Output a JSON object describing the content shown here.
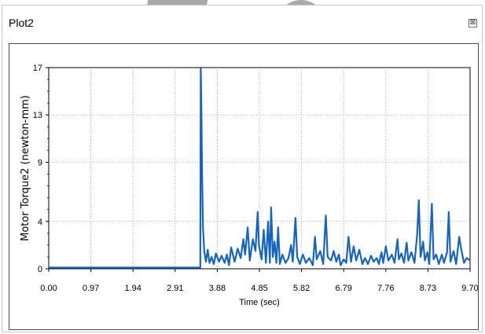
{
  "window": {
    "title": "Plot2",
    "close_glyph": "⊠"
  },
  "colors": {
    "series": "#1565c0",
    "grid": "#9a9a9a",
    "frame": "#4a4a4a",
    "axis": "#000000"
  },
  "chart_data": {
    "type": "line",
    "title": "",
    "xlabel": "Time (sec)",
    "ylabel": "Motor Torque2 (newton-mm)",
    "xlim": [
      0,
      9.7
    ],
    "ylim": [
      0,
      17
    ],
    "xticks": [
      "0.00",
      "0.97",
      "1.94",
      "2.91",
      "3.88",
      "4.85",
      "5.82",
      "6.79",
      "7.76",
      "8.73",
      "9.70"
    ],
    "yticks": [
      "0",
      "4",
      "9",
      "13",
      "17"
    ],
    "grid": true,
    "series": [
      {
        "values_xy": [
          [
            0.0,
            0.1
          ],
          [
            3.49,
            0.1
          ],
          [
            3.5,
            17.0
          ],
          [
            3.51,
            14.5
          ],
          [
            3.53,
            8.0
          ],
          [
            3.55,
            3.5
          ],
          [
            3.58,
            1.5
          ],
          [
            3.62,
            0.6
          ],
          [
            3.66,
            1.6
          ],
          [
            3.7,
            0.5
          ],
          [
            3.75,
            1.0
          ],
          [
            3.8,
            0.4
          ],
          [
            3.85,
            1.3
          ],
          [
            3.92,
            0.6
          ],
          [
            3.98,
            1.1
          ],
          [
            4.05,
            0.5
          ],
          [
            4.1,
            1.2
          ],
          [
            4.15,
            0.3
          ],
          [
            4.2,
            1.8
          ],
          [
            4.28,
            0.6
          ],
          [
            4.35,
            1.7
          ],
          [
            4.42,
            0.9
          ],
          [
            4.48,
            2.5
          ],
          [
            4.52,
            1.2
          ],
          [
            4.58,
            3.5
          ],
          [
            4.63,
            0.7
          ],
          [
            4.7,
            2.5
          ],
          [
            4.76,
            1.5
          ],
          [
            4.81,
            4.8
          ],
          [
            4.84,
            2.0
          ],
          [
            4.9,
            0.8
          ],
          [
            4.95,
            3.3
          ],
          [
            5.0,
            0.5
          ],
          [
            5.05,
            4.0
          ],
          [
            5.09,
            0.5
          ],
          [
            5.12,
            5.2
          ],
          [
            5.16,
            1.0
          ],
          [
            5.2,
            2.3
          ],
          [
            5.24,
            0.5
          ],
          [
            5.28,
            3.5
          ],
          [
            5.32,
            0.4
          ],
          [
            5.38,
            1.2
          ],
          [
            5.45,
            0.5
          ],
          [
            5.52,
            0.9
          ],
          [
            5.58,
            2.0
          ],
          [
            5.62,
            0.6
          ],
          [
            5.68,
            4.3
          ],
          [
            5.72,
            1.0
          ],
          [
            5.78,
            0.4
          ],
          [
            5.85,
            1.2
          ],
          [
            5.92,
            0.5
          ],
          [
            6.0,
            0.9
          ],
          [
            6.08,
            0.3
          ],
          [
            6.13,
            2.7
          ],
          [
            6.17,
            0.8
          ],
          [
            6.25,
            1.5
          ],
          [
            6.32,
            0.4
          ],
          [
            6.38,
            4.5
          ],
          [
            6.42,
            1.0
          ],
          [
            6.5,
            0.7
          ],
          [
            6.56,
            1.5
          ],
          [
            6.62,
            0.6
          ],
          [
            6.68,
            1.2
          ],
          [
            6.72,
            0.3
          ],
          [
            6.79,
            0.8
          ],
          [
            6.85,
            0.5
          ],
          [
            6.9,
            2.7
          ],
          [
            6.96,
            0.6
          ],
          [
            7.02,
            1.9
          ],
          [
            7.08,
            0.7
          ],
          [
            7.15,
            1.6
          ],
          [
            7.22,
            0.4
          ],
          [
            7.28,
            0.9
          ],
          [
            7.35,
            0.4
          ],
          [
            7.42,
            1.1
          ],
          [
            7.48,
            0.6
          ],
          [
            7.55,
            0.9
          ],
          [
            7.6,
            0.4
          ],
          [
            7.66,
            1.4
          ],
          [
            7.7,
            0.5
          ],
          [
            7.76,
            1.9
          ],
          [
            7.82,
            0.7
          ],
          [
            7.9,
            1.2
          ],
          [
            7.96,
            0.5
          ],
          [
            8.03,
            2.5
          ],
          [
            8.06,
            0.8
          ],
          [
            8.12,
            1.3
          ],
          [
            8.18,
            0.5
          ],
          [
            8.24,
            2.2
          ],
          [
            8.28,
            0.7
          ],
          [
            8.35,
            1.4
          ],
          [
            8.42,
            0.5
          ],
          [
            8.48,
            2.8
          ],
          [
            8.52,
            5.8
          ],
          [
            8.56,
            1.0
          ],
          [
            8.62,
            2.3
          ],
          [
            8.66,
            0.7
          ],
          [
            8.72,
            1.4
          ],
          [
            8.76,
            0.4
          ],
          [
            8.82,
            5.5
          ],
          [
            8.86,
            0.8
          ],
          [
            8.92,
            1.2
          ],
          [
            8.98,
            0.4
          ],
          [
            9.05,
            1.2
          ],
          [
            9.1,
            0.5
          ],
          [
            9.17,
            1.4
          ],
          [
            9.21,
            4.8
          ],
          [
            9.25,
            0.6
          ],
          [
            9.32,
            1.5
          ],
          [
            9.38,
            0.4
          ],
          [
            9.45,
            2.7
          ],
          [
            9.5,
            1.6
          ],
          [
            9.56,
            0.5
          ],
          [
            9.62,
            0.9
          ],
          [
            9.7,
            0.7
          ]
        ]
      }
    ]
  }
}
